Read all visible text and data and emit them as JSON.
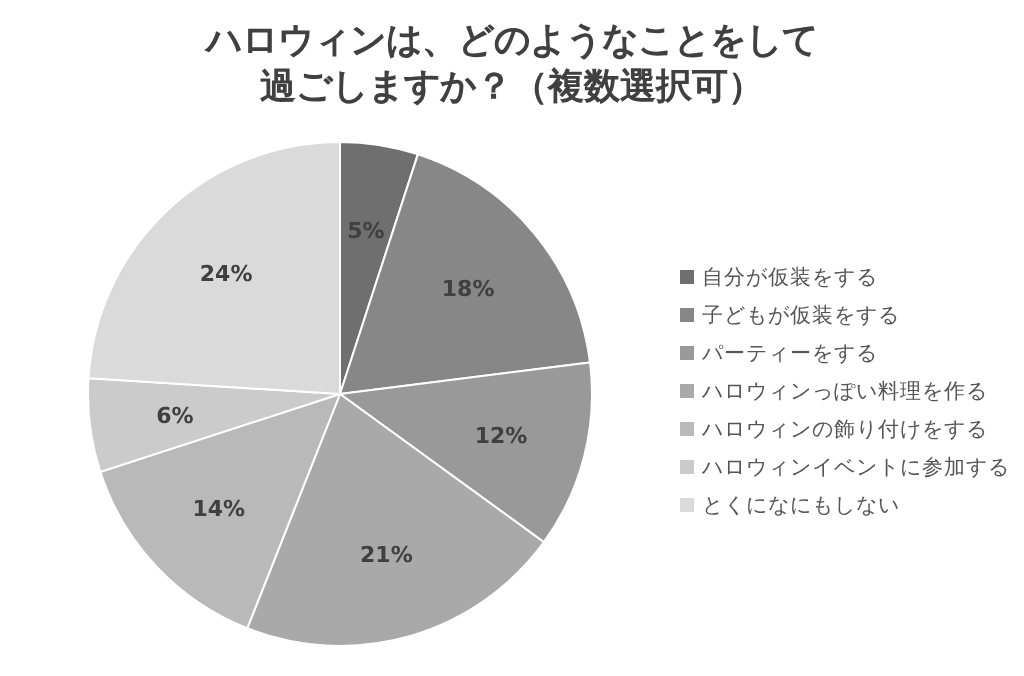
{
  "chart_data": {
    "type": "pie",
    "title": "ハロウィンは、どのようなことをして過ごしますか？（複数選択可）",
    "categories": [
      "自分が仮装をする",
      "子どもが仮装をする",
      "パーティーをする",
      "ハロウィンっぽい料理を作る",
      "ハロウィンの飾り付けをする",
      "ハロウィンイベントに参加する",
      "とくになにもしない"
    ],
    "values": [
      5,
      18,
      12,
      21,
      14,
      6,
      24
    ],
    "colors": [
      "#6f6f6f",
      "#878787",
      "#999999",
      "#a9a9a9",
      "#b9b9b9",
      "#cbcbcb",
      "#dadada"
    ],
    "value_labels": [
      "5%",
      "18%",
      "12%",
      "21%",
      "14%",
      "6%",
      "24%"
    ],
    "legend": "right"
  }
}
